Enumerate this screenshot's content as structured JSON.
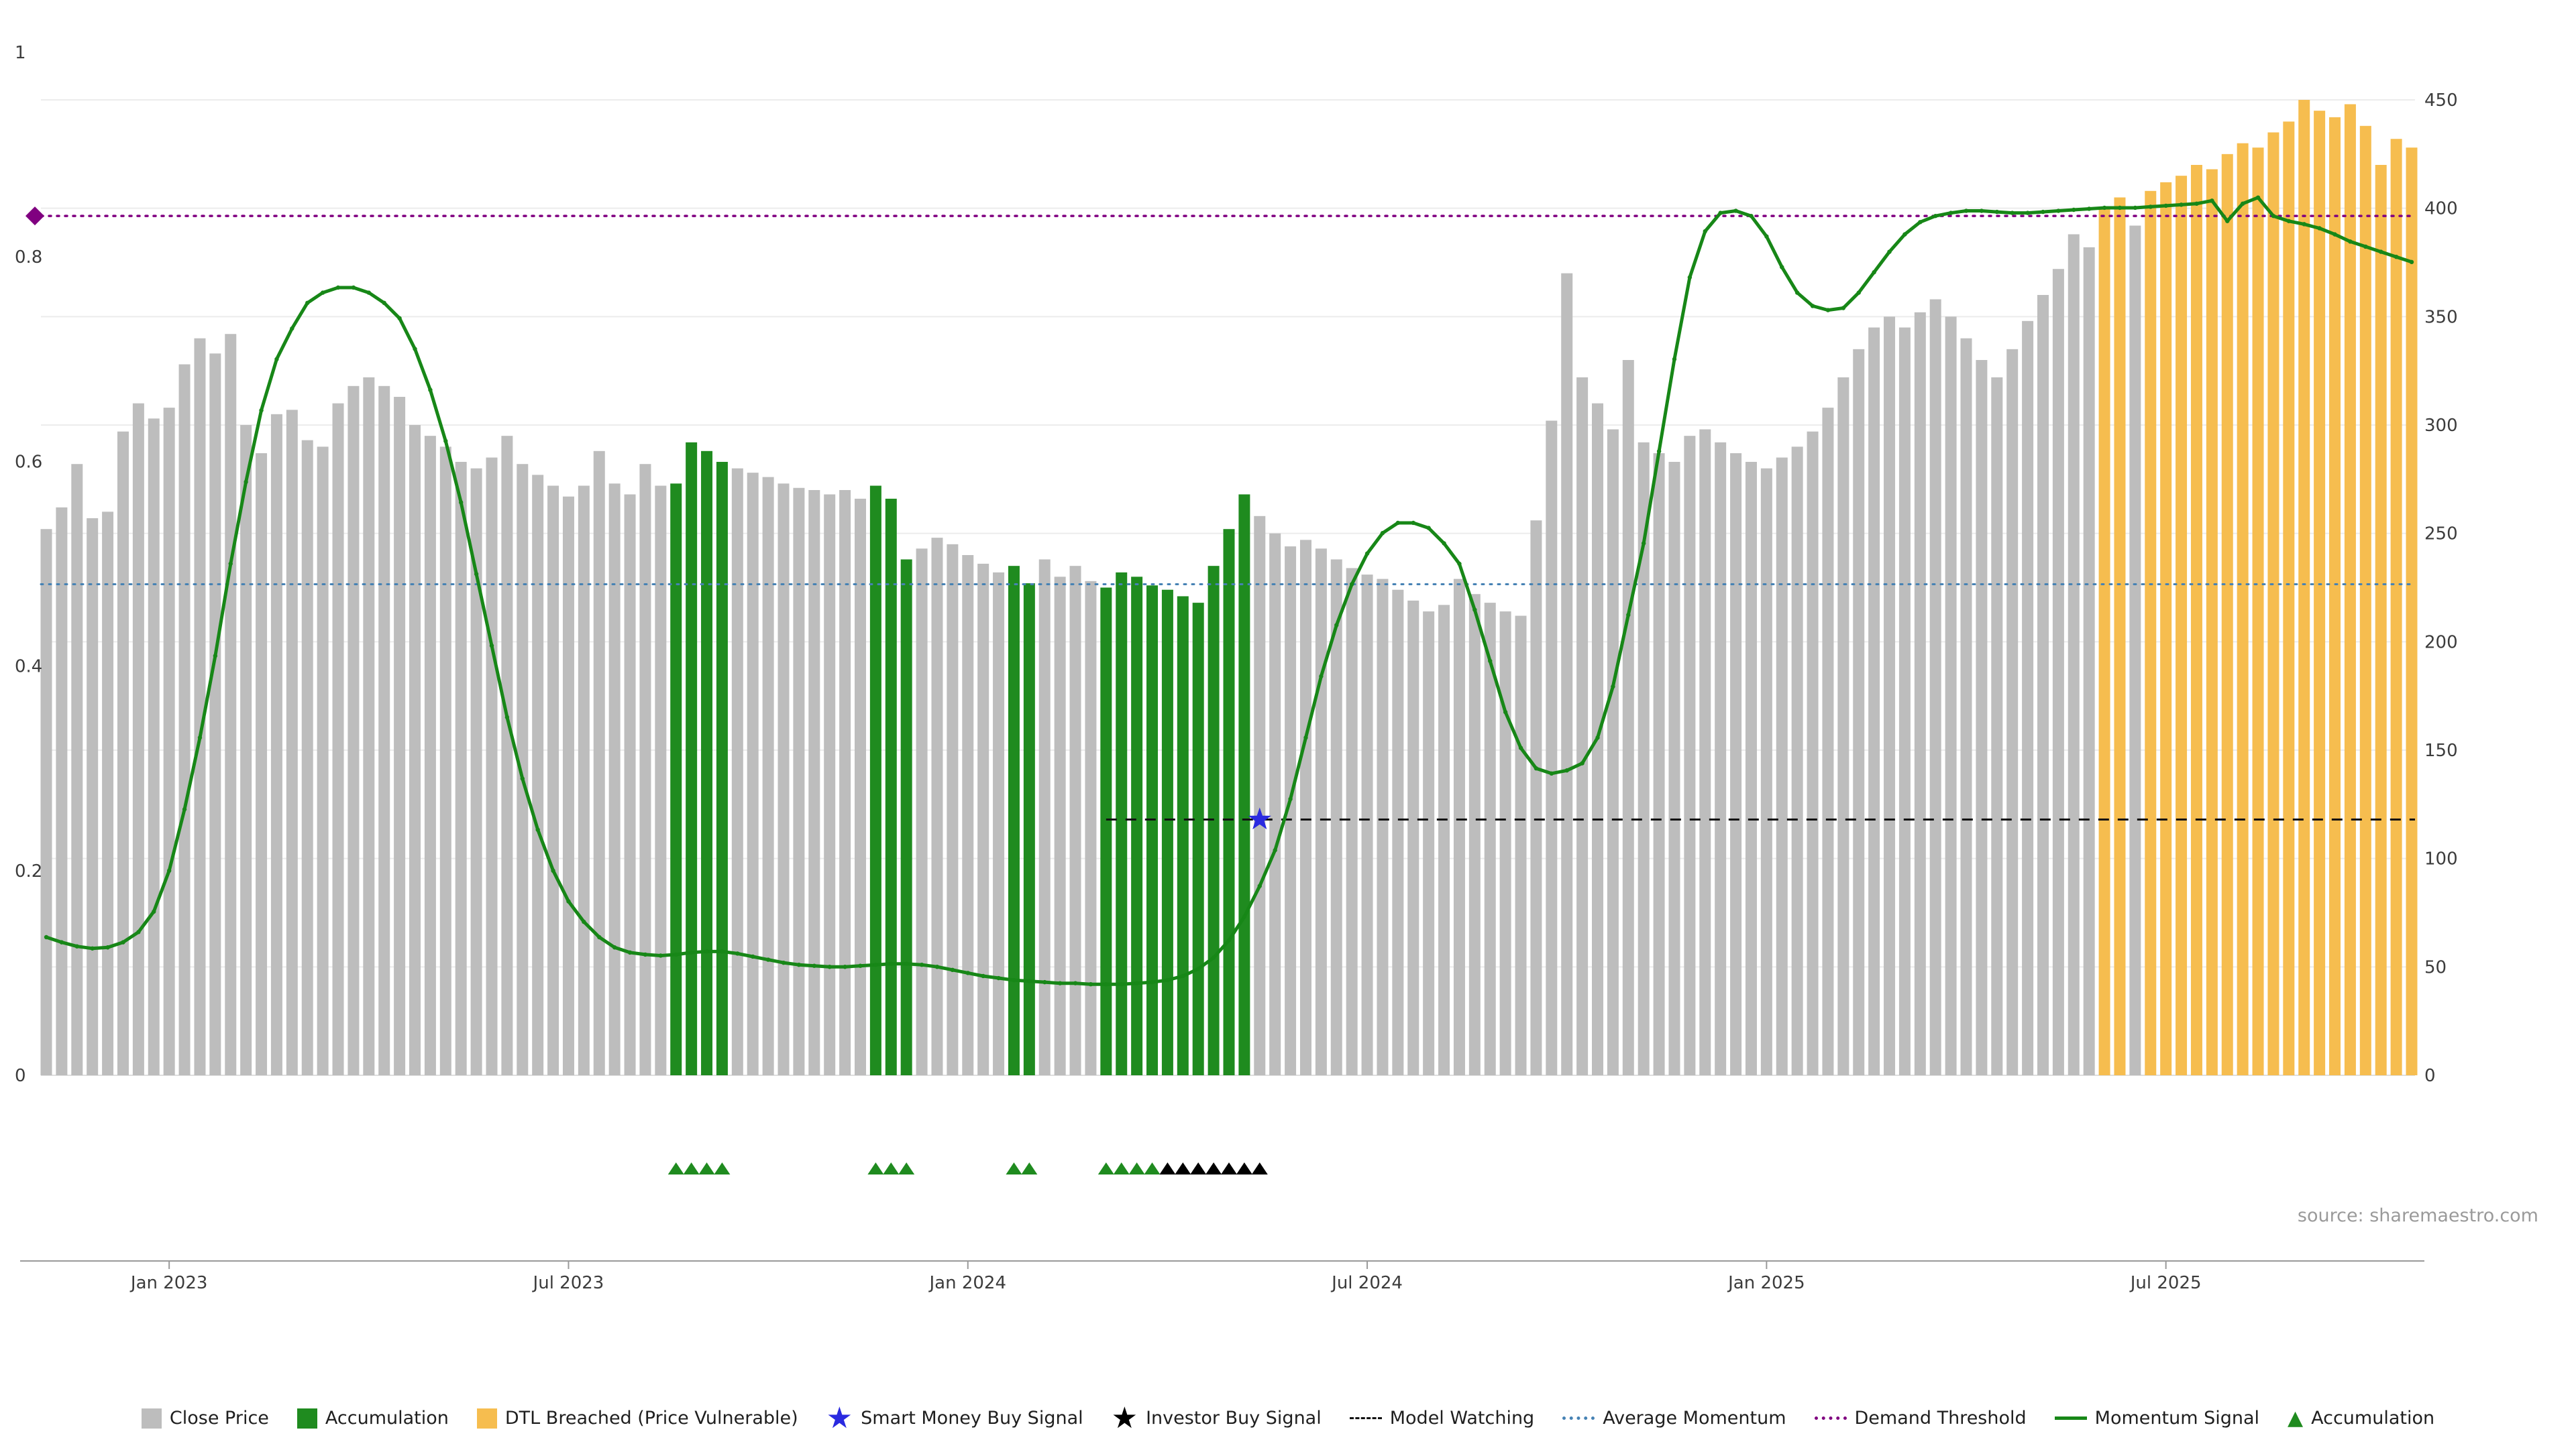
{
  "source": "source: sharemaestro.com",
  "colors": {
    "close_price": "#bdbdbd",
    "accumulation": "#1f8b1f",
    "dtl_breached": "#f6bd4f",
    "momentum_line": "#178717",
    "average_momentum": "#4682b4",
    "demand_threshold": "#800080",
    "model_watching": "#111111",
    "smart_money_star": "#2a2ae0",
    "investor_star": "#000000",
    "grid": "#ececec",
    "axis_line": "#9a9a9a"
  },
  "legend": {
    "items": [
      {
        "swatch": "square",
        "color": "#bdbdbd",
        "label": "Close Price"
      },
      {
        "swatch": "square",
        "color": "#1f8b1f",
        "label": "Accumulation"
      },
      {
        "swatch": "square",
        "color": "#f6bd4f",
        "label": "DTL Breached (Price Vulnerable)"
      },
      {
        "swatch": "star",
        "color": "#2a2ae0",
        "label": "Smart Money Buy Signal"
      },
      {
        "swatch": "star",
        "color": "#000000",
        "label": "Investor Buy Signal"
      },
      {
        "swatch": "dashed-line",
        "color": "#111111",
        "label": "Model Watching"
      },
      {
        "swatch": "dotted-line",
        "color": "#4682b4",
        "label": "Average Momentum"
      },
      {
        "swatch": "dotted-line",
        "color": "#800080",
        "label": "Demand Threshold"
      },
      {
        "swatch": "solid-line",
        "color": "#178717",
        "label": "Momentum Signal"
      },
      {
        "swatch": "triangle",
        "color": "#1f8b1f",
        "label": "Accumulation"
      }
    ]
  },
  "chart_data": {
    "type": "bar+line",
    "weeks": 155,
    "left_axis": {
      "min": 0,
      "max": 1,
      "ticks": [
        0,
        0.2,
        0.4,
        0.6,
        0.8,
        1
      ],
      "tick_labels": [
        "0",
        "0.2",
        "0.4",
        "0.6",
        "0.8",
        "1"
      ]
    },
    "right_axis": {
      "min": 0,
      "max": 450,
      "ticks": [
        0,
        50,
        100,
        150,
        200,
        250,
        300,
        350,
        400,
        450
      ]
    },
    "x_ticks": [
      {
        "label": "Jan 2023",
        "index": 8
      },
      {
        "label": "Jul 2023",
        "index": 34
      },
      {
        "label": "Jan 2024",
        "index": 60
      },
      {
        "label": "Jul 2024",
        "index": 86
      },
      {
        "label": "Jan 2025",
        "index": 112
      },
      {
        "label": "Jul 2025",
        "index": 138
      }
    ],
    "close_price": [
      252,
      262,
      282,
      257,
      260,
      297,
      310,
      303,
      308,
      328,
      340,
      333,
      342,
      300,
      287,
      305,
      307,
      293,
      290,
      310,
      318,
      322,
      318,
      313,
      300,
      295,
      290,
      283,
      280,
      285,
      295,
      282,
      277,
      272,
      267,
      272,
      288,
      273,
      268,
      282,
      272,
      273,
      292,
      288,
      283,
      280,
      278,
      276,
      273,
      271,
      270,
      268,
      270,
      266,
      272,
      266,
      238,
      243,
      248,
      245,
      240,
      236,
      232,
      235,
      227,
      238,
      230,
      235,
      228,
      225,
      232,
      230,
      226,
      224,
      221,
      218,
      235,
      252,
      268,
      258,
      250,
      244,
      247,
      243,
      238,
      234,
      231,
      229,
      224,
      219,
      214,
      217,
      229,
      222,
      218,
      214,
      212,
      256,
      302,
      370,
      322,
      310,
      298,
      330,
      292,
      287,
      283,
      295,
      298,
      292,
      287,
      283,
      280,
      285,
      290,
      297,
      308,
      322,
      335,
      345,
      350,
      345,
      352,
      358,
      350,
      340,
      330,
      322,
      335,
      348,
      360,
      372,
      388,
      382,
      400,
      405,
      392,
      408,
      412,
      415,
      420,
      418,
      425,
      430,
      428,
      435,
      440,
      450,
      445,
      442,
      448,
      438,
      420,
      432,
      428
    ],
    "momentum": [
      0.135,
      0.13,
      0.126,
      0.124,
      0.125,
      0.13,
      0.14,
      0.16,
      0.2,
      0.26,
      0.33,
      0.41,
      0.5,
      0.58,
      0.65,
      0.7,
      0.73,
      0.755,
      0.765,
      0.77,
      0.77,
      0.765,
      0.755,
      0.74,
      0.71,
      0.67,
      0.62,
      0.56,
      0.49,
      0.42,
      0.35,
      0.29,
      0.24,
      0.2,
      0.17,
      0.15,
      0.135,
      0.125,
      0.12,
      0.118,
      0.117,
      0.118,
      0.12,
      0.121,
      0.121,
      0.119,
      0.116,
      0.113,
      0.11,
      0.108,
      0.107,
      0.106,
      0.106,
      0.107,
      0.108,
      0.109,
      0.109,
      0.108,
      0.106,
      0.103,
      0.1,
      0.097,
      0.095,
      0.093,
      0.092,
      0.091,
      0.09,
      0.09,
      0.089,
      0.089,
      0.089,
      0.09,
      0.091,
      0.093,
      0.097,
      0.104,
      0.115,
      0.132,
      0.155,
      0.185,
      0.22,
      0.27,
      0.33,
      0.39,
      0.44,
      0.48,
      0.51,
      0.53,
      0.54,
      0.54,
      0.535,
      0.52,
      0.5,
      0.455,
      0.405,
      0.355,
      0.32,
      0.3,
      0.295,
      0.298,
      0.305,
      0.33,
      0.38,
      0.45,
      0.52,
      0.61,
      0.7,
      0.78,
      0.825,
      0.843,
      0.845,
      0.84,
      0.82,
      0.79,
      0.765,
      0.752,
      0.748,
      0.75,
      0.765,
      0.785,
      0.805,
      0.822,
      0.834,
      0.84,
      0.843,
      0.845,
      0.845,
      0.844,
      0.843,
      0.843,
      0.844,
      0.845,
      0.846,
      0.847,
      0.848,
      0.848,
      0.848,
      0.849,
      0.85,
      0.851,
      0.852,
      0.855,
      0.835,
      0.852,
      0.858,
      0.84,
      0.835,
      0.832,
      0.828,
      0.822,
      0.815,
      0.81,
      0.805,
      0.8,
      0.795
    ],
    "accumulation_bar_ranges": [
      [
        41,
        44
      ],
      [
        54,
        56
      ],
      [
        63,
        64
      ],
      [
        69,
        78
      ]
    ],
    "dtl_bar_ranges": [
      [
        134,
        135
      ],
      [
        137,
        154
      ]
    ],
    "average_momentum_value": 0.48,
    "demand_threshold_value": 0.84,
    "model_watching": {
      "value": 0.25,
      "start_index": 69
    },
    "smart_money_buy_signal": {
      "index": 79,
      "value": 0.25
    },
    "demand_threshold_marker": {
      "value": 0.84
    },
    "accumulation_triangle_indices": [
      41,
      42,
      43,
      44,
      54,
      55,
      56,
      63,
      64,
      69,
      70,
      71,
      72
    ],
    "investor_triangle_indices": [
      73,
      74,
      75,
      76,
      77,
      78,
      79
    ]
  }
}
